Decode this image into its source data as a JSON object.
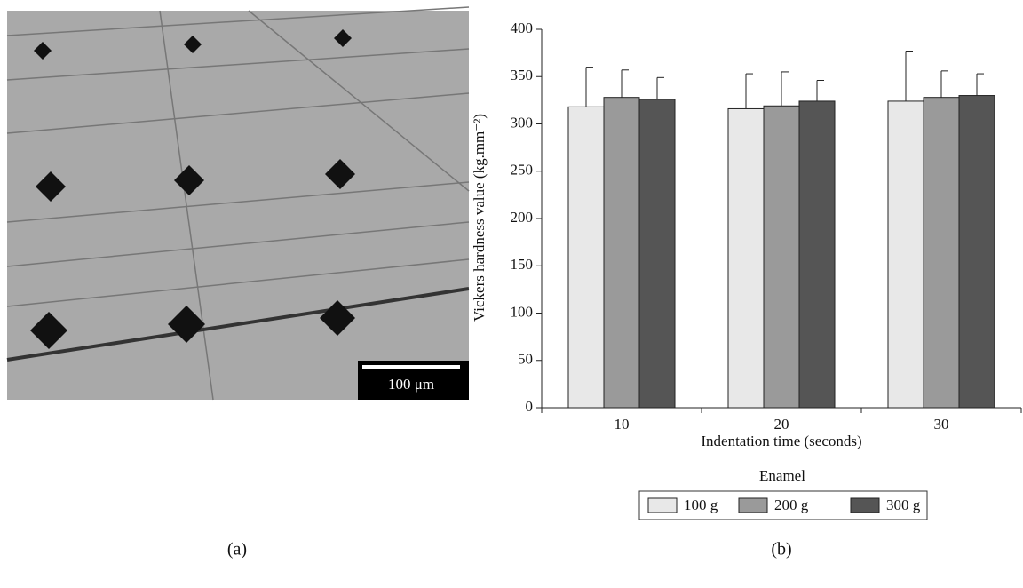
{
  "chart_data": {
    "type": "bar",
    "y_label": "Vickers hardness value (kg.mm⁻²)",
    "x_label": "Indentation time (seconds)",
    "legend_title": "Enamel",
    "categories": [
      "10",
      "20",
      "30"
    ],
    "series": [
      {
        "name": "100 g",
        "color": "#e8e8e8",
        "values": [
          318,
          316,
          324
        ],
        "errors": [
          42,
          37,
          53
        ]
      },
      {
        "name": "200 g",
        "color": "#9a9a9a",
        "values": [
          328,
          319,
          328
        ],
        "errors": [
          29,
          36,
          28
        ]
      },
      {
        "name": "300 g",
        "color": "#555555",
        "values": [
          326,
          324,
          330
        ],
        "errors": [
          23,
          22,
          23
        ]
      }
    ],
    "ylim": [
      0,
      400
    ],
    "yticks": [
      0,
      50,
      100,
      150,
      200,
      250,
      300,
      350,
      400
    ],
    "grid": false
  },
  "panel_a": {
    "scale_bar": "100 μm",
    "caption": "(a)"
  },
  "panel_b": {
    "caption": "(b)"
  }
}
